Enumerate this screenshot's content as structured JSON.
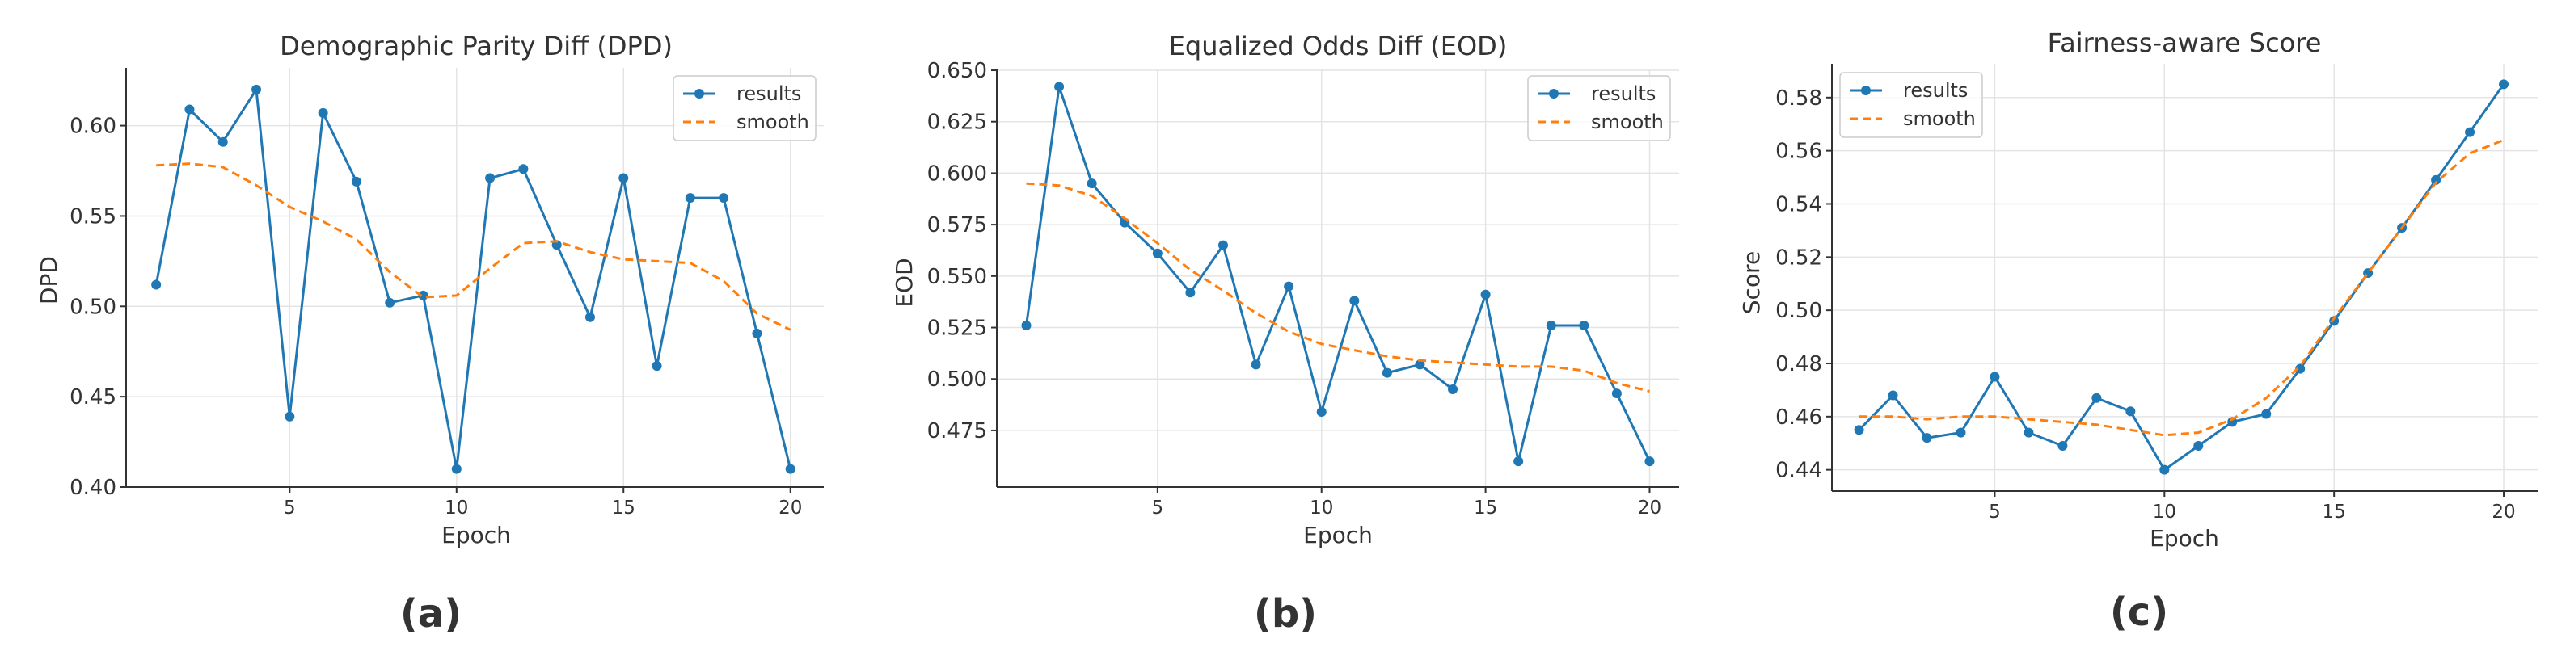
{
  "chart_data": [
    {
      "type": "line",
      "title": "Demographic Parity Diff (DPD)",
      "xlabel": "Epoch",
      "ylabel": "DPD",
      "caption": "(a)",
      "xlim": [
        0.1,
        21.0
      ],
      "ylim": [
        0.4,
        0.632
      ],
      "x_ticks": [
        5,
        10,
        15,
        20
      ],
      "y_ticks": [
        "0.40",
        "0.45",
        "0.50",
        "0.55",
        "0.60"
      ],
      "grid": true,
      "legend": "top-right",
      "x": [
        1,
        2,
        3,
        4,
        5,
        6,
        7,
        8,
        9,
        10,
        11,
        12,
        13,
        14,
        15,
        16,
        17,
        18,
        19,
        20
      ],
      "series": [
        {
          "name": "results",
          "style": "line-marker",
          "color": "#1f77b4",
          "values": [
            0.512,
            0.609,
            0.591,
            0.62,
            0.439,
            0.607,
            0.569,
            0.502,
            0.506,
            0.41,
            0.571,
            0.576,
            0.534,
            0.494,
            0.571,
            0.467,
            0.56,
            0.56,
            0.485,
            0.41
          ]
        },
        {
          "name": "smooth",
          "style": "dashed",
          "color": "#ff7f0e",
          "values": [
            0.578,
            0.579,
            0.577,
            0.567,
            0.555,
            0.547,
            0.537,
            0.519,
            0.505,
            0.506,
            0.521,
            0.535,
            0.536,
            0.53,
            0.526,
            0.525,
            0.524,
            0.514,
            0.496,
            0.487
          ]
        }
      ]
    },
    {
      "type": "line",
      "title": "Equalized Odds Diff (EOD)",
      "xlabel": "Epoch",
      "ylabel": "EOD",
      "caption": "(b)",
      "xlim": [
        0.1,
        20.9
      ],
      "ylim": [
        0.4475,
        0.6504
      ],
      "x_ticks": [
        5,
        10,
        15,
        20
      ],
      "y_ticks": [
        "0.475",
        "0.500",
        "0.525",
        "0.550",
        "0.575",
        "0.600",
        "0.625",
        "0.650"
      ],
      "grid": true,
      "legend": "top-right",
      "x": [
        1,
        2,
        3,
        4,
        5,
        6,
        7,
        8,
        9,
        10,
        11,
        12,
        13,
        14,
        15,
        16,
        17,
        18,
        19,
        20
      ],
      "series": [
        {
          "name": "results",
          "style": "line-marker",
          "color": "#1f77b4",
          "values": [
            0.526,
            0.642,
            0.595,
            0.576,
            0.561,
            0.542,
            0.565,
            0.507,
            0.545,
            0.484,
            0.538,
            0.503,
            0.507,
            0.495,
            0.541,
            0.46,
            0.526,
            0.526,
            0.493,
            0.46
          ]
        },
        {
          "name": "smooth",
          "style": "dashed",
          "color": "#ff7f0e",
          "values": [
            0.595,
            0.594,
            0.589,
            0.578,
            0.566,
            0.553,
            0.543,
            0.532,
            0.523,
            0.517,
            0.514,
            0.511,
            0.509,
            0.508,
            0.507,
            0.506,
            0.506,
            0.504,
            0.498,
            0.494
          ]
        }
      ]
    },
    {
      "type": "line",
      "title": "Fairness-aware Score",
      "xlabel": "Epoch",
      "ylabel": "Score",
      "caption": "(c)",
      "xlim": [
        0.2,
        21.0
      ],
      "ylim": [
        0.432,
        0.5927
      ],
      "x_ticks": [
        5,
        10,
        15,
        20
      ],
      "y_ticks": [
        "0.44",
        "0.46",
        "0.48",
        "0.50",
        "0.52",
        "0.54",
        "0.56",
        "0.58"
      ],
      "grid": true,
      "legend": "top-left",
      "x": [
        1,
        2,
        3,
        4,
        5,
        6,
        7,
        8,
        9,
        10,
        11,
        12,
        13,
        14,
        15,
        16,
        17,
        18,
        19,
        20
      ],
      "series": [
        {
          "name": "results",
          "style": "line-marker",
          "color": "#1f77b4",
          "values": [
            0.455,
            0.468,
            0.452,
            0.454,
            0.475,
            0.454,
            0.449,
            0.467,
            0.462,
            0.44,
            0.449,
            0.458,
            0.461,
            0.478,
            0.496,
            0.514,
            0.531,
            0.549,
            0.567,
            0.585
          ]
        },
        {
          "name": "smooth",
          "style": "dashed",
          "color": "#ff7f0e",
          "values": [
            0.46,
            0.46,
            0.459,
            0.46,
            0.46,
            0.459,
            0.458,
            0.457,
            0.455,
            0.453,
            0.454,
            0.459,
            0.467,
            0.479,
            0.497,
            0.514,
            0.531,
            0.548,
            0.559,
            0.564
          ]
        }
      ]
    }
  ]
}
